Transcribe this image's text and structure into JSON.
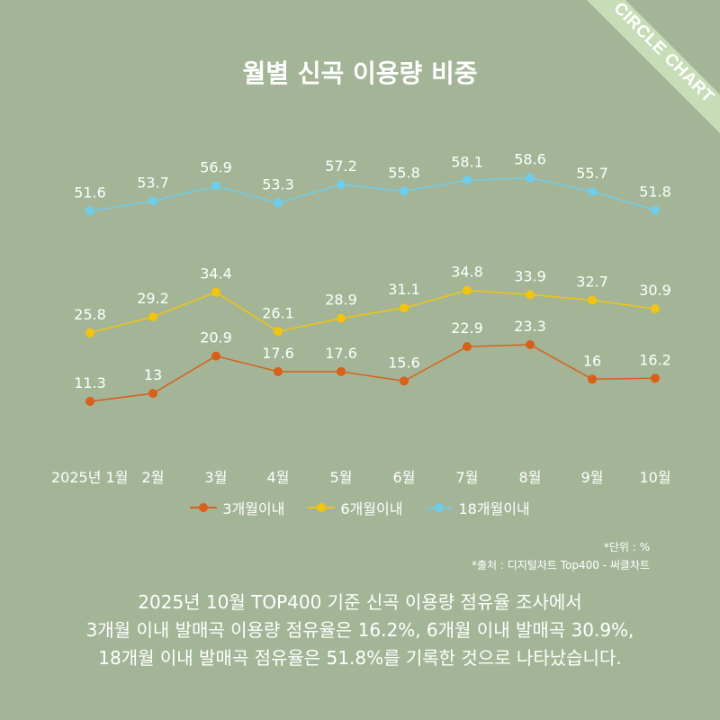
{
  "brand": {
    "ribbon_label": "CIRCLE CHART",
    "ribbon_color": "#c6ddb8"
  },
  "colors": {
    "background": "#a3b596"
  },
  "chart_data": {
    "type": "line",
    "title": "월별 신곡 이용량 비중",
    "categories": [
      "2025년 1월",
      "2월",
      "3월",
      "4월",
      "5월",
      "6월",
      "7월",
      "8월",
      "9월",
      "10월"
    ],
    "series": [
      {
        "name": "3개월이내",
        "color": "#d95f1b",
        "values": [
          11.3,
          13,
          20.9,
          17.6,
          17.6,
          15.6,
          22.9,
          23.3,
          16,
          16.2
        ]
      },
      {
        "name": "6개월이내",
        "color": "#f2c40f",
        "values": [
          25.8,
          29.2,
          34.4,
          26.1,
          28.9,
          31.1,
          34.8,
          33.9,
          32.7,
          30.9
        ]
      },
      {
        "name": "18개월이내",
        "color": "#6fcdeb",
        "values": [
          51.6,
          53.7,
          56.9,
          53.3,
          57.2,
          55.8,
          58.1,
          58.6,
          55.7,
          51.8
        ]
      }
    ],
    "data_labels": true,
    "grid": false,
    "legend_position": "bottom"
  },
  "notes": {
    "unit": "*단위 : %",
    "source": "*출처 :  디지털차트 Top400 - 써클차트"
  },
  "summary": [
    "2025년 10월 TOP400 기준 신곡 이용량 점유율 조사에서",
    "3개월 이내 발매곡 이용량 점유율은 16.2%, 6개월 이내 발매곡 30.9%,",
    "18개월 이내 발매곡 점유율은 51.8%를 기록한 것으로 나타났습니다."
  ]
}
